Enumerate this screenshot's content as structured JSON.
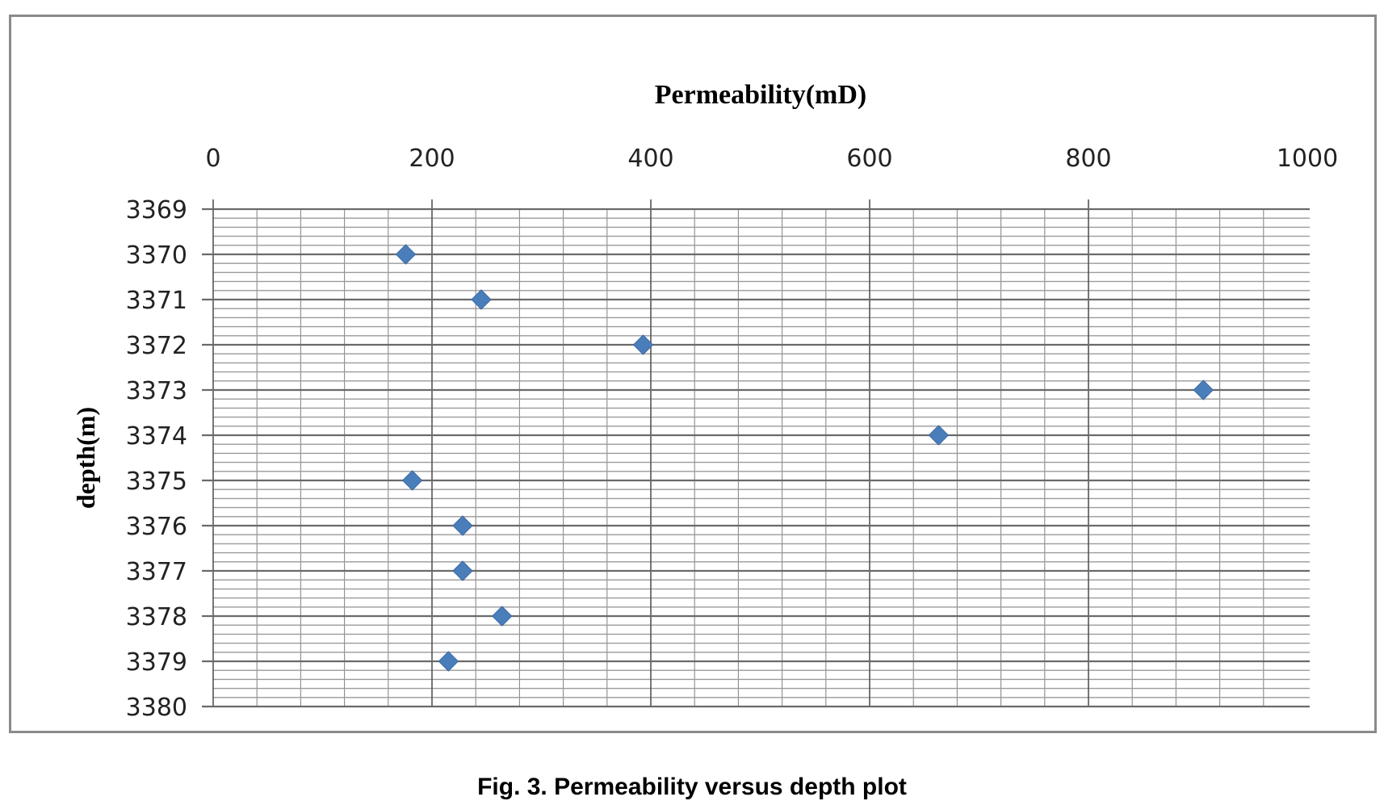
{
  "chart_data": {
    "type": "scatter",
    "title": "",
    "xlabel": "Permeability(mD)",
    "ylabel": "depth(m)",
    "x_axis_position": "top",
    "y_axis_inverted": true,
    "xlim": [
      0,
      1000
    ],
    "ylim": [
      3369,
      3380
    ],
    "x_ticks": [
      0,
      200,
      400,
      600,
      800,
      1000
    ],
    "y_ticks": [
      3369,
      3370,
      3371,
      3372,
      3373,
      3374,
      3375,
      3376,
      3377,
      3378,
      3379,
      3380
    ],
    "x_minor_step": 40,
    "y_minor_step": 0.2,
    "grid": true,
    "legend": null,
    "marker": "diamond",
    "marker_color": "#4a7ebb",
    "series": [
      {
        "name": "Permeability",
        "points": [
          {
            "depth": 3370,
            "permeability": 176
          },
          {
            "depth": 3371,
            "permeability": 245
          },
          {
            "depth": 3372,
            "permeability": 393
          },
          {
            "depth": 3373,
            "permeability": 905
          },
          {
            "depth": 3374,
            "permeability": 663
          },
          {
            "depth": 3375,
            "permeability": 182
          },
          {
            "depth": 3376,
            "permeability": 228
          },
          {
            "depth": 3377,
            "permeability": 228
          },
          {
            "depth": 3378,
            "permeability": 264
          },
          {
            "depth": 3379,
            "permeability": 215
          }
        ]
      }
    ]
  },
  "caption": "Fig. 3. Permeability versus depth plot"
}
